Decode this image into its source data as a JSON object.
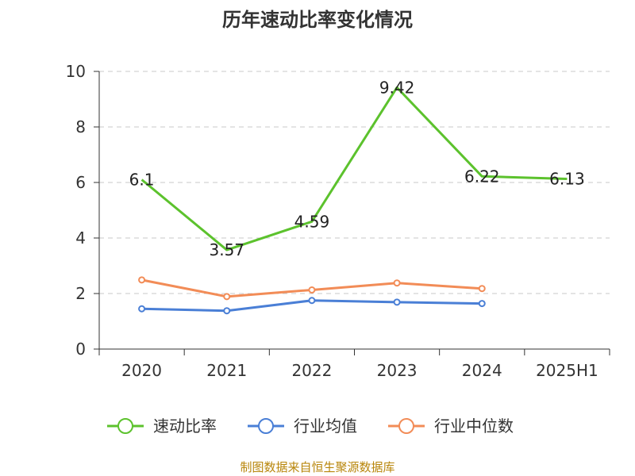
{
  "chart_data": {
    "type": "line",
    "title": "历年速动比率变化情况",
    "categories": [
      "2020",
      "2021",
      "2022",
      "2023",
      "2024",
      "2025H1"
    ],
    "ylim": [
      0,
      10
    ],
    "yticks": [
      "0",
      "2",
      "4",
      "6",
      "8",
      "10"
    ],
    "grid": true,
    "legend_position": "bottom",
    "series": [
      {
        "name": "速动比率",
        "color": "#5cc22d",
        "values": [
          6.1,
          3.57,
          4.59,
          9.42,
          6.22,
          6.13
        ],
        "labels": [
          "6.1",
          "3.57",
          "4.59",
          "9.42",
          "6.22",
          "6.13"
        ]
      },
      {
        "name": "行业均值",
        "color": "#4a7fd6",
        "values": [
          1.45,
          1.38,
          1.75,
          1.69,
          1.64,
          null
        ]
      },
      {
        "name": "行业中位数",
        "color": "#f28c57",
        "values": [
          2.49,
          1.89,
          2.13,
          2.38,
          2.18,
          null
        ]
      }
    ],
    "source": "制图数据来自恒生聚源数据库"
  }
}
